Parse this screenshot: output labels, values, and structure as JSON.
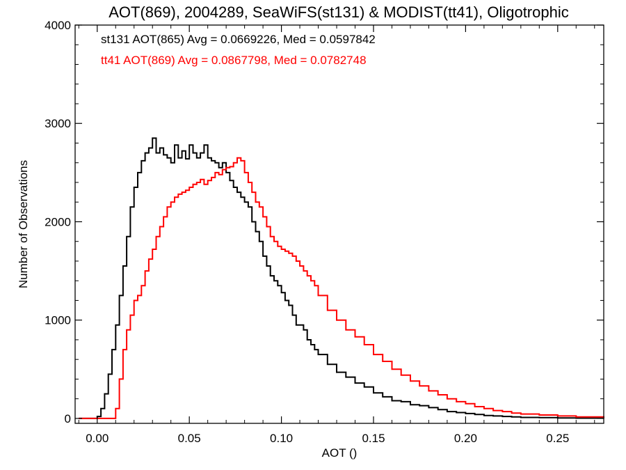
{
  "chart_data": {
    "type": "line",
    "title": "AOT(869), 2004289, SeaWiFS(st131) & MODIST(tt41), Oligotrophic",
    "xlabel": "AOT ()",
    "ylabel": "Number of Observations",
    "xlim": [
      -0.012,
      0.275
    ],
    "ylim": [
      -50,
      4000
    ],
    "x_ticks": [
      0.0,
      0.05,
      0.1,
      0.15,
      0.2,
      0.25
    ],
    "x_tick_labels": [
      "0.00",
      "0.05",
      "0.10",
      "0.15",
      "0.20",
      "0.25"
    ],
    "y_ticks": [
      0,
      1000,
      2000,
      3000,
      4000
    ],
    "y_tick_labels": [
      "0",
      "1000",
      "2000",
      "3000",
      "4000"
    ],
    "grid": false,
    "step": true,
    "series": [
      {
        "name": "st131 AOT(865)",
        "legend_text": "st131 AOT(865) Avg = 0.0669226, Med = 0.0597842",
        "color": "#000000",
        "x": [
          -0.01,
          0.0,
          0.002,
          0.004,
          0.006,
          0.008,
          0.01,
          0.012,
          0.014,
          0.016,
          0.018,
          0.02,
          0.022,
          0.024,
          0.026,
          0.028,
          0.03,
          0.032,
          0.034,
          0.036,
          0.038,
          0.04,
          0.042,
          0.044,
          0.046,
          0.048,
          0.05,
          0.052,
          0.054,
          0.056,
          0.058,
          0.06,
          0.062,
          0.064,
          0.066,
          0.068,
          0.07,
          0.072,
          0.074,
          0.076,
          0.078,
          0.08,
          0.082,
          0.084,
          0.086,
          0.088,
          0.09,
          0.092,
          0.094,
          0.096,
          0.098,
          0.1,
          0.102,
          0.104,
          0.106,
          0.108,
          0.11,
          0.112,
          0.114,
          0.116,
          0.118,
          0.12,
          0.125,
          0.13,
          0.135,
          0.14,
          0.145,
          0.15,
          0.155,
          0.16,
          0.165,
          0.17,
          0.175,
          0.18,
          0.185,
          0.19,
          0.195,
          0.2,
          0.205,
          0.21,
          0.215,
          0.22,
          0.225,
          0.23,
          0.24,
          0.25,
          0.26,
          0.275
        ],
        "values": [
          0,
          20,
          100,
          250,
          450,
          700,
          950,
          1250,
          1550,
          1850,
          2150,
          2350,
          2500,
          2620,
          2700,
          2750,
          2850,
          2700,
          2750,
          2680,
          2650,
          2600,
          2780,
          2650,
          2720,
          2640,
          2780,
          2700,
          2650,
          2700,
          2780,
          2650,
          2620,
          2600,
          2550,
          2600,
          2500,
          2420,
          2350,
          2300,
          2250,
          2200,
          2150,
          2000,
          1900,
          1800,
          1650,
          1550,
          1450,
          1400,
          1350,
          1280,
          1200,
          1150,
          1050,
          950,
          950,
          900,
          800,
          750,
          700,
          650,
          550,
          470,
          420,
          360,
          320,
          260,
          220,
          180,
          170,
          140,
          130,
          110,
          90,
          70,
          60,
          50,
          40,
          30,
          25,
          20,
          15,
          10,
          8,
          5,
          3,
          0
        ]
      },
      {
        "name": "tt41 AOT(869)",
        "legend_text": "tt41 AOT(869) Avg = 0.0867798, Med = 0.0782748",
        "color": "#ff0000",
        "x": [
          -0.01,
          0.008,
          0.01,
          0.012,
          0.014,
          0.016,
          0.018,
          0.02,
          0.022,
          0.024,
          0.026,
          0.028,
          0.03,
          0.032,
          0.034,
          0.036,
          0.038,
          0.04,
          0.042,
          0.044,
          0.046,
          0.048,
          0.05,
          0.052,
          0.054,
          0.056,
          0.058,
          0.06,
          0.062,
          0.064,
          0.066,
          0.068,
          0.07,
          0.072,
          0.074,
          0.076,
          0.078,
          0.08,
          0.082,
          0.084,
          0.086,
          0.088,
          0.09,
          0.092,
          0.094,
          0.096,
          0.098,
          0.1,
          0.102,
          0.104,
          0.106,
          0.108,
          0.11,
          0.112,
          0.114,
          0.116,
          0.118,
          0.12,
          0.125,
          0.13,
          0.135,
          0.14,
          0.145,
          0.15,
          0.155,
          0.16,
          0.165,
          0.17,
          0.175,
          0.18,
          0.185,
          0.19,
          0.195,
          0.2,
          0.205,
          0.21,
          0.215,
          0.22,
          0.225,
          0.23,
          0.24,
          0.25,
          0.26,
          0.275
        ],
        "values": [
          0,
          0,
          100,
          400,
          700,
          900,
          1050,
          1200,
          1250,
          1350,
          1500,
          1620,
          1720,
          1850,
          1950,
          2050,
          2150,
          2200,
          2250,
          2280,
          2300,
          2320,
          2350,
          2380,
          2400,
          2430,
          2380,
          2420,
          2450,
          2500,
          2480,
          2530,
          2550,
          2560,
          2600,
          2650,
          2620,
          2500,
          2400,
          2300,
          2200,
          2150,
          2050,
          1950,
          1850,
          1800,
          1750,
          1720,
          1700,
          1680,
          1650,
          1600,
          1550,
          1500,
          1450,
          1400,
          1350,
          1250,
          1100,
          1000,
          900,
          830,
          750,
          650,
          580,
          500,
          440,
          380,
          330,
          280,
          240,
          200,
          170,
          150,
          120,
          100,
          80,
          70,
          55,
          45,
          35,
          25,
          15,
          5
        ]
      }
    ]
  }
}
